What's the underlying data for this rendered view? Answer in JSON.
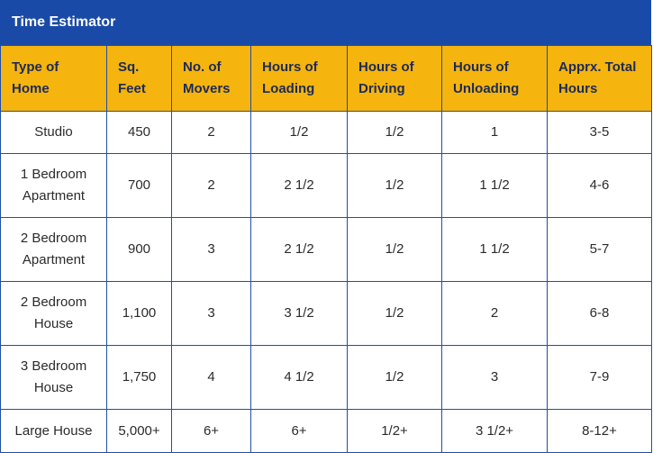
{
  "title": "Time Estimator",
  "columns": [
    "Type of Home",
    "Sq. Feet",
    "No. of Movers",
    "Hours of Loading",
    "Hours of Driving",
    "Hours of Unloading",
    "Apprx. Total Hours"
  ],
  "rows": [
    [
      "Studio",
      "450",
      "2",
      "1/2",
      "1/2",
      "1",
      "3-5"
    ],
    [
      "1 Bedroom Apartment",
      "700",
      "2",
      "2 1/2",
      "1/2",
      "1 1/2",
      "4-6"
    ],
    [
      "2 Bedroom Apartment",
      "900",
      "3",
      "2 1/2",
      "1/2",
      "1 1/2",
      "5-7"
    ],
    [
      "2 Bedroom House",
      "1,100",
      "3",
      "3 1/2",
      "1/2",
      "2",
      "6-8"
    ],
    [
      "3 Bedroom House",
      "1,750",
      "4",
      "4 1/2",
      "1/2",
      "3",
      "7-9"
    ],
    [
      "Large House",
      "5,000+",
      "6+",
      "6+",
      "1/2+",
      "3 1/2+",
      "8-12+"
    ]
  ],
  "colors": {
    "header_bar": "#1a4aa8",
    "column_header": "#f6b40e",
    "border": "#1f4fa6"
  }
}
